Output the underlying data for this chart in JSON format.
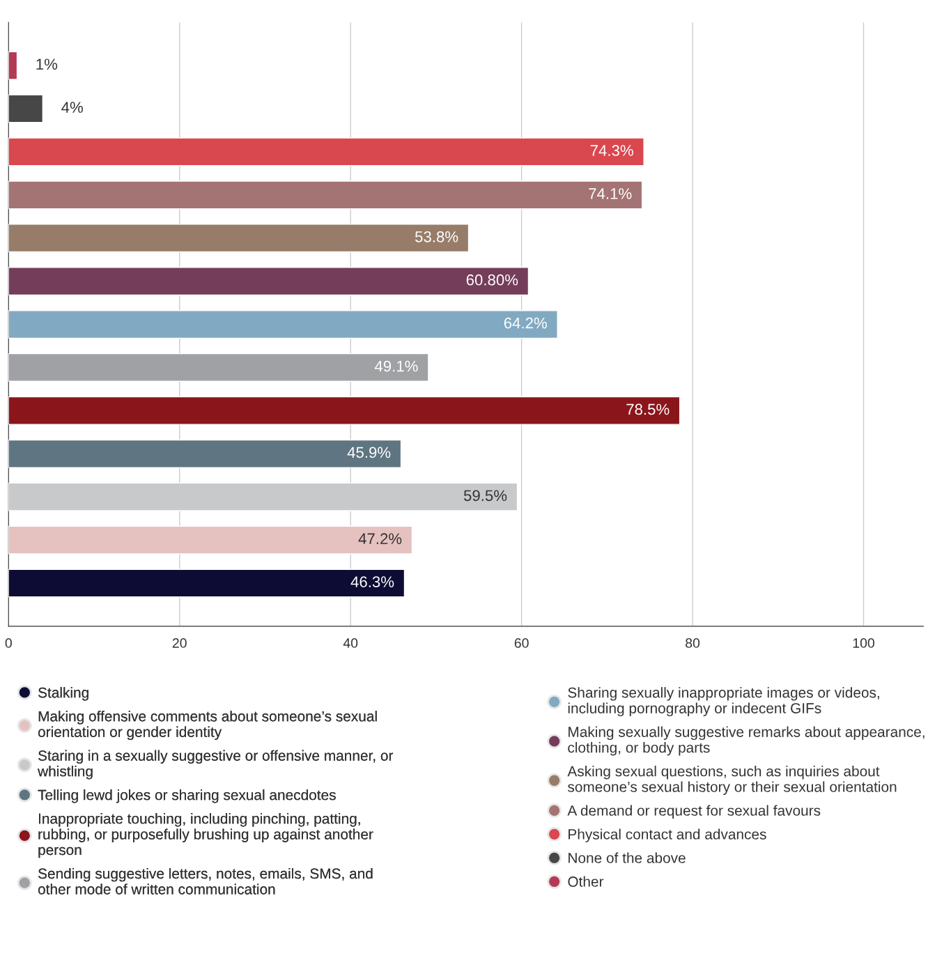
{
  "chart_data": {
    "type": "bar",
    "orientation": "horizontal",
    "categories": [
      null,
      null,
      null,
      null,
      null,
      null,
      null,
      null,
      null,
      null,
      null,
      null,
      null
    ],
    "series": [
      {
        "name": "Other",
        "color": "#b23a55",
        "values": [
          1,
          null,
          null,
          null,
          null,
          null,
          null,
          null,
          null,
          null,
          null,
          null,
          null
        ],
        "value_labels": [
          "1%",
          null,
          null,
          null,
          null,
          null,
          null,
          null,
          null,
          null,
          null,
          null,
          null
        ]
      },
      {
        "name": "None of the above",
        "color": "#474747",
        "values": [
          null,
          4,
          null,
          null,
          null,
          null,
          null,
          null,
          null,
          null,
          null,
          null,
          null
        ],
        "value_labels": [
          null,
          "4%",
          null,
          null,
          null,
          null,
          null,
          null,
          null,
          null,
          null,
          null,
          null
        ]
      },
      {
        "name": "Physical contact and advances",
        "color": "#d9474f",
        "values": [
          null,
          null,
          74.3,
          null,
          null,
          null,
          null,
          null,
          null,
          null,
          null,
          null,
          null
        ],
        "value_labels": [
          null,
          null,
          "74.3%",
          null,
          null,
          null,
          null,
          null,
          null,
          null,
          null,
          null,
          null
        ]
      },
      {
        "name": "A demand or request for sexual favours",
        "color": "#a37473",
        "values": [
          null,
          null,
          null,
          74.1,
          null,
          null,
          null,
          null,
          null,
          null,
          null,
          null,
          null
        ],
        "value_labels": [
          null,
          null,
          null,
          "74.1%",
          null,
          null,
          null,
          null,
          null,
          null,
          null,
          null,
          null
        ]
      },
      {
        "name": "Asking sexual questions, such as inquiries about someone’s sexual history or their sexual orientation",
        "color": "#977d69",
        "values": [
          null,
          null,
          null,
          null,
          53.8,
          null,
          null,
          null,
          null,
          null,
          null,
          null,
          null
        ],
        "value_labels": [
          null,
          null,
          null,
          null,
          "53.8%",
          null,
          null,
          null,
          null,
          null,
          null,
          null,
          null
        ]
      },
      {
        "name": "Making sexually suggestive remarks about appearance, clothing, or body parts",
        "color": "#743d59",
        "values": [
          null,
          null,
          null,
          null,
          null,
          60.8,
          null,
          null,
          null,
          null,
          null,
          null,
          null
        ],
        "value_labels": [
          null,
          null,
          null,
          null,
          null,
          "60.80%",
          null,
          null,
          null,
          null,
          null,
          null,
          null
        ]
      },
      {
        "name": "Sharing sexually inappropriate images or videos, including pornography or indecent GIFs",
        "color": "#81aac2",
        "values": [
          null,
          null,
          null,
          null,
          null,
          null,
          64.2,
          null,
          null,
          null,
          null,
          null,
          null
        ],
        "value_labels": [
          null,
          null,
          null,
          null,
          null,
          null,
          "64.2%",
          null,
          null,
          null,
          null,
          null,
          null
        ]
      },
      {
        "name": "Sending suggestive letters, notes, emails, SMS, and other mode of written communication",
        "color": "#a0a1a4",
        "values": [
          null,
          null,
          null,
          null,
          null,
          null,
          null,
          49.1,
          null,
          null,
          null,
          null,
          null
        ],
        "value_labels": [
          null,
          null,
          null,
          null,
          null,
          null,
          null,
          "49.1%",
          null,
          null,
          null,
          null,
          null
        ]
      },
      {
        "name": "Inappropriate touching, including pinching, patting, rubbing, or purposefully brushing up against another person",
        "color": "#8a161b",
        "values": [
          null,
          null,
          null,
          null,
          null,
          null,
          null,
          null,
          78.5,
          null,
          null,
          null,
          null
        ],
        "value_labels": [
          null,
          null,
          null,
          null,
          null,
          null,
          null,
          null,
          "78.5%",
          null,
          null,
          null,
          null
        ]
      },
      {
        "name": "Telling lewd jokes or sharing sexual anecdotes",
        "color": "#5f7581",
        "values": [
          null,
          null,
          null,
          null,
          null,
          null,
          null,
          null,
          null,
          45.9,
          null,
          null,
          null
        ],
        "value_labels": [
          null,
          null,
          null,
          null,
          null,
          null,
          null,
          null,
          null,
          "45.9%",
          null,
          null,
          null
        ]
      },
      {
        "name": "Staring in a sexually suggestive or offensive manner, or whistling",
        "color": "#c8c9cb",
        "values": [
          null,
          null,
          null,
          null,
          null,
          null,
          null,
          null,
          null,
          null,
          59.5,
          null,
          null
        ],
        "value_labels": [
          null,
          null,
          null,
          null,
          null,
          null,
          null,
          null,
          null,
          null,
          "59.5%",
          null,
          null
        ]
      },
      {
        "name": "Making offensive comments about someone’s sexual orientation or gender identity",
        "color": "#e5c2c0",
        "values": [
          null,
          null,
          null,
          null,
          null,
          null,
          null,
          null,
          null,
          null,
          null,
          47.2,
          null
        ],
        "value_labels": [
          null,
          null,
          null,
          null,
          null,
          null,
          null,
          null,
          null,
          null,
          null,
          "47.2%",
          null
        ]
      },
      {
        "name": "Stalking",
        "color": "#0d0c34",
        "values": [
          null,
          null,
          null,
          null,
          null,
          null,
          null,
          null,
          null,
          null,
          null,
          null,
          46.3
        ],
        "value_labels": [
          null,
          null,
          null,
          null,
          null,
          null,
          null,
          null,
          null,
          null,
          null,
          null,
          "46.3%"
        ]
      }
    ],
    "xlim": [
      0,
      107
    ],
    "xticks": [
      0,
      20,
      40,
      60,
      80,
      100
    ],
    "grid": "x",
    "legend": "bottom"
  }
}
